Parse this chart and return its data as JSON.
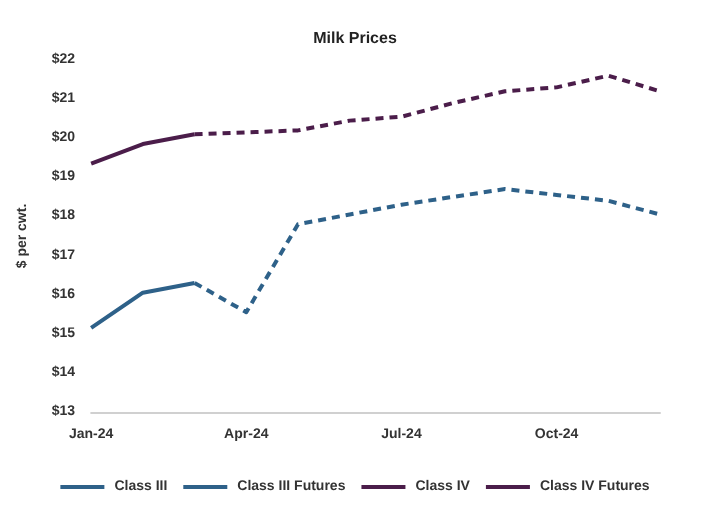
{
  "chart_data": {
    "type": "line",
    "title": "Milk Prices",
    "ylabel": "$ per cwt.",
    "categories": [
      "Jan-24",
      null,
      null,
      "Apr-24",
      null,
      null,
      "Jul-24",
      null,
      null,
      "Oct-24",
      null,
      null
    ],
    "series": [
      {
        "name": "Class III",
        "color": "#2e6189",
        "line_style": "solid",
        "values": [
          15.15,
          16.05,
          16.3,
          null,
          null,
          null,
          null,
          null,
          null,
          null,
          null,
          null
        ]
      },
      {
        "name": "Class III Futures",
        "color": "#2e6189",
        "line_style": "dashed",
        "values": [
          null,
          null,
          16.3,
          15.55,
          17.8,
          18.05,
          18.3,
          18.5,
          18.7,
          18.55,
          18.4,
          18.05
        ]
      },
      {
        "name": "Class IV",
        "color": "#4b1d4a",
        "line_style": "solid",
        "values": [
          19.35,
          19.85,
          20.1,
          null,
          null,
          null,
          null,
          null,
          null,
          null,
          null,
          null
        ]
      },
      {
        "name": "Class IV Futures",
        "color": "#4b1d4a",
        "line_style": "dashed",
        "values": [
          null,
          null,
          20.1,
          20.15,
          20.2,
          20.45,
          20.55,
          20.9,
          21.2,
          21.3,
          21.6,
          21.2
        ]
      }
    ],
    "ylim": [
      13,
      22
    ],
    "yticks": [
      {
        "value": 13,
        "label": "$13"
      },
      {
        "value": 14,
        "label": "$14"
      },
      {
        "value": 15,
        "label": "$15"
      },
      {
        "value": 16,
        "label": "$16"
      },
      {
        "value": 17,
        "label": "$17"
      },
      {
        "value": 18,
        "label": "$18"
      },
      {
        "value": 19,
        "label": "$19"
      },
      {
        "value": 20,
        "label": "$20"
      },
      {
        "value": 21,
        "label": "$21"
      },
      {
        "value": 22,
        "label": "$22"
      }
    ],
    "grid": false,
    "legend": "bottom",
    "marker": "none"
  }
}
